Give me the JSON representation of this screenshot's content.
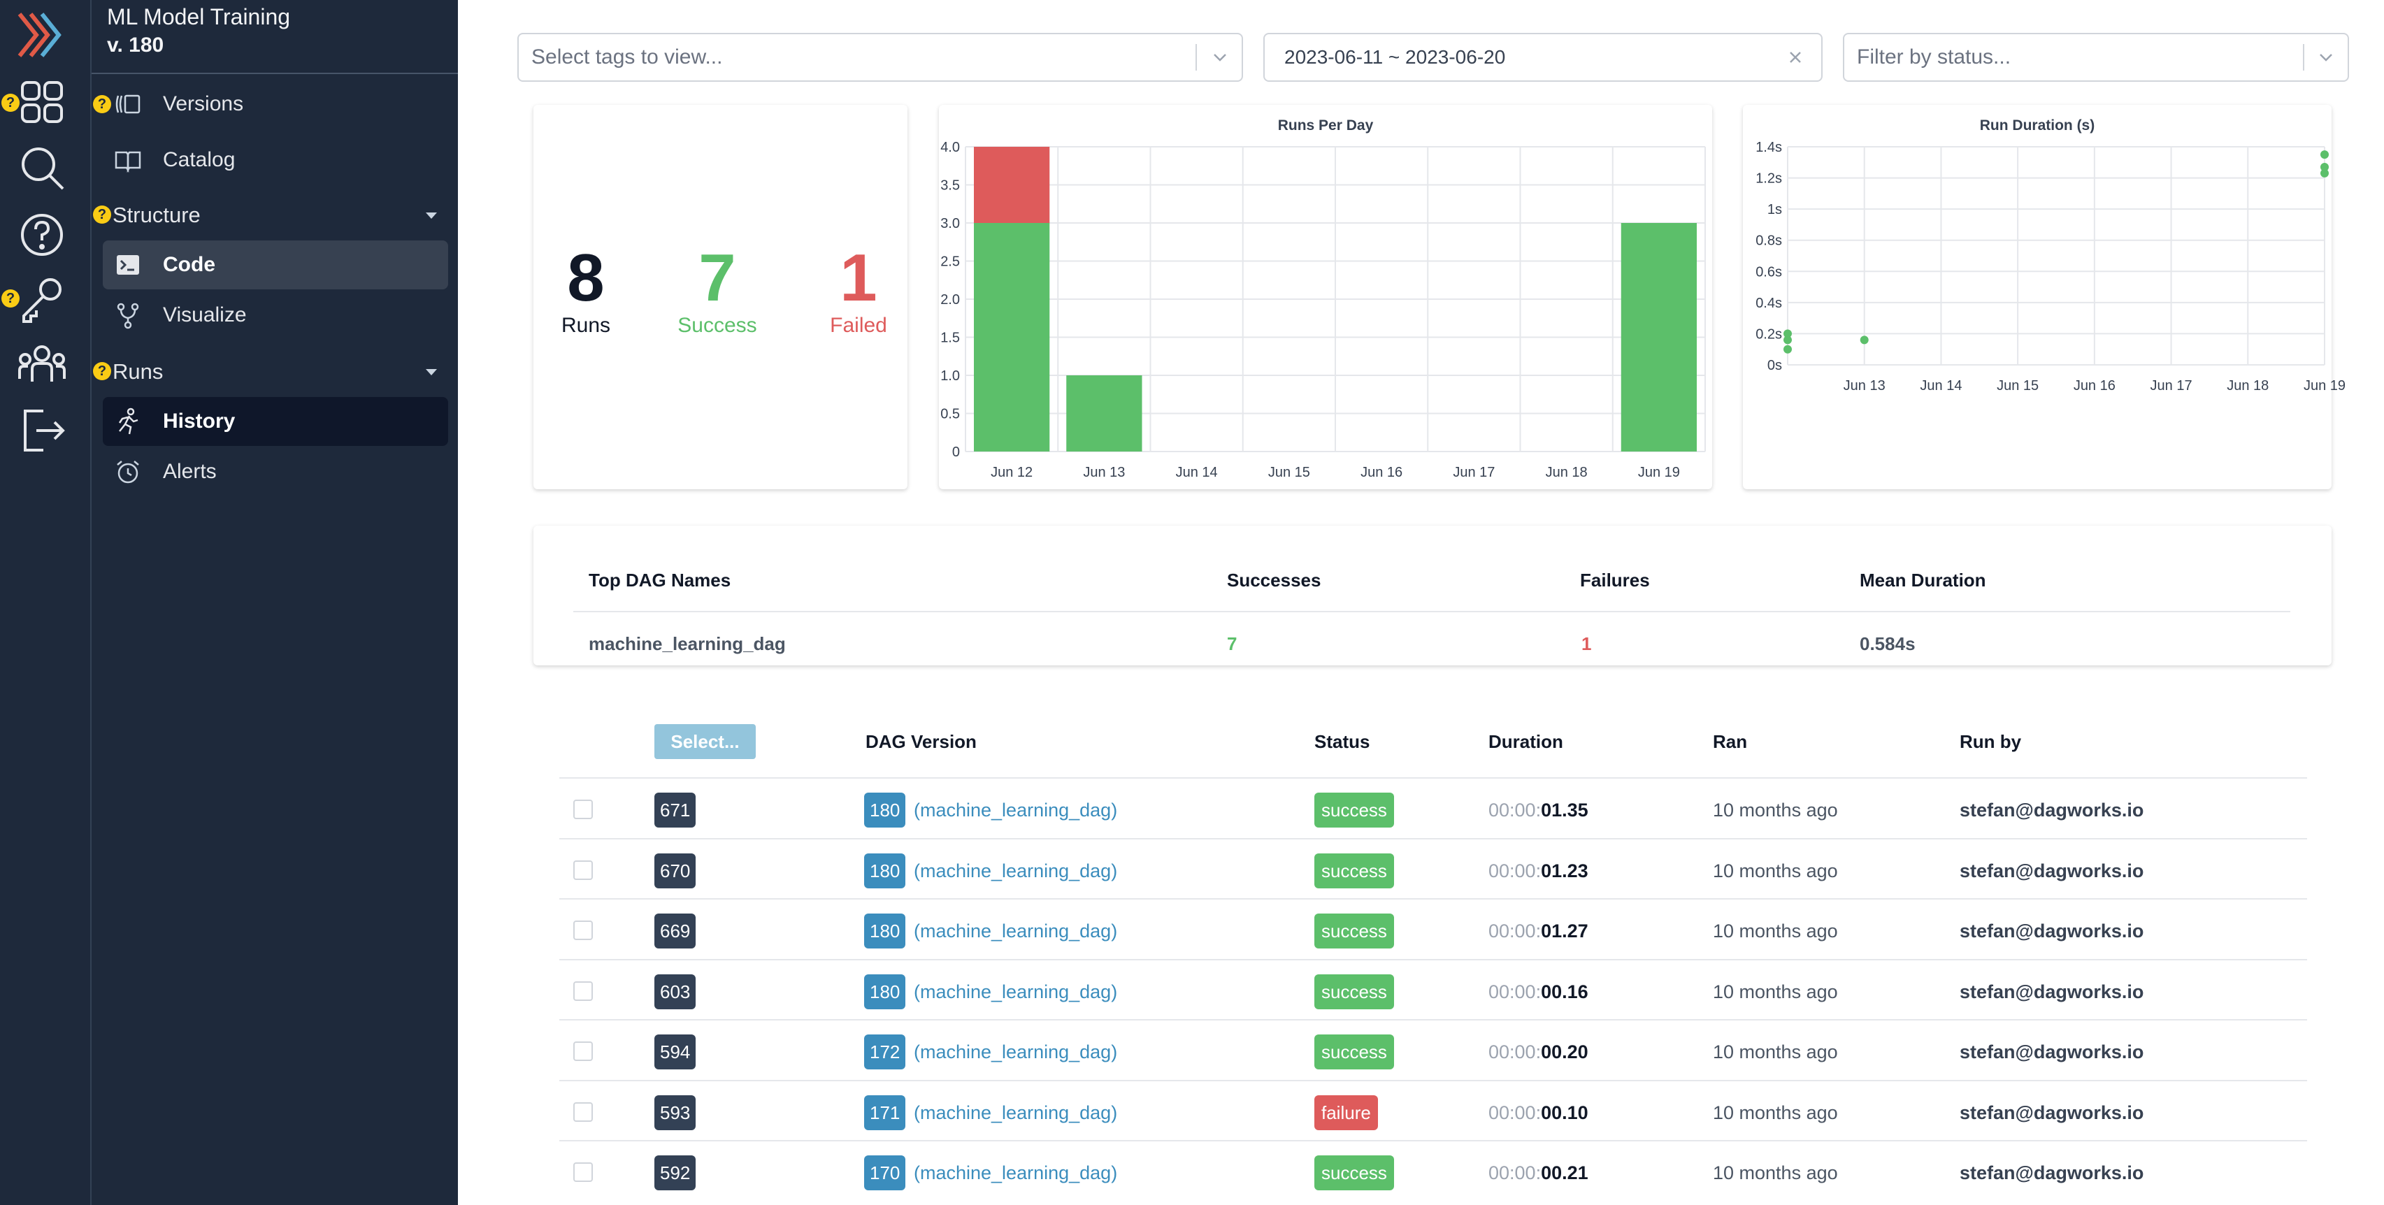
{
  "project": {
    "name": "ML Model Training",
    "version": "v. 180"
  },
  "rail": {
    "icons": [
      "dagworks-logo-icon",
      "dashboard-grid-icon",
      "search-icon",
      "help-icon",
      "key-icon",
      "team-icon",
      "logout-icon"
    ],
    "help_badge": "?"
  },
  "nav": {
    "versions": "Versions",
    "catalog": "Catalog",
    "structure": "Structure",
    "code": "Code",
    "visualize": "Visualize",
    "runs": "Runs",
    "history": "History",
    "alerts": "Alerts"
  },
  "filters": {
    "tags_placeholder": "Select tags to view...",
    "date_range": "2023-06-11 ~ 2023-06-20",
    "status_placeholder": "Filter by status..."
  },
  "summary": {
    "runs_count": "8",
    "runs_label": "Runs",
    "success_count": "7",
    "success_label": "Success",
    "failed_count": "1",
    "failed_label": "Failed"
  },
  "colors": {
    "success": "#5cbf6a",
    "failure": "#de5b5b",
    "accent": "#3b8dbd",
    "sidebar": "#1e293b"
  },
  "chart_data": [
    {
      "type": "bar",
      "title": "Runs Per Day",
      "categories": [
        "Jun 12",
        "Jun 13",
        "Jun 14",
        "Jun 15",
        "Jun 16",
        "Jun 17",
        "Jun 18",
        "Jun 19"
      ],
      "series": [
        {
          "values": [
            3,
            1,
            0,
            0,
            0,
            0,
            0,
            3
          ],
          "color": "#5cbf6a"
        },
        {
          "values": [
            1,
            0,
            0,
            0,
            0,
            0,
            0,
            0
          ],
          "color": "#de5b5b"
        }
      ],
      "stacked": true,
      "ylim": [
        0,
        4
      ],
      "yticks": [
        "0",
        "0.5",
        "1.0",
        "1.5",
        "2.0",
        "2.5",
        "3.0",
        "3.5",
        "4.0"
      ],
      "grid": true
    },
    {
      "type": "scatter",
      "title": "Run Duration (s)",
      "xticks": [
        "Jun 13",
        "Jun 14",
        "Jun 15",
        "Jun 16",
        "Jun 17",
        "Jun 18",
        "Jun 19"
      ],
      "x_range": [
        "2023-06-12",
        "2023-06-19"
      ],
      "points": [
        {
          "x": "2023-06-12",
          "y": 0.2
        },
        {
          "x": "2023-06-12",
          "y": 0.1
        },
        {
          "x": "2023-06-12",
          "y": 0.16
        },
        {
          "x": "2023-06-13",
          "y": 0.16
        },
        {
          "x": "2023-06-19",
          "y": 1.35
        },
        {
          "x": "2023-06-19",
          "y": 1.23
        },
        {
          "x": "2023-06-19",
          "y": 1.27
        }
      ],
      "point_color": "#5cbf6a",
      "ylim": [
        0,
        1.4
      ],
      "yticks": [
        "0s",
        "0.2s",
        "0.4s",
        "0.6s",
        "0.8s",
        "1s",
        "1.2s",
        "1.4s"
      ],
      "grid": true
    }
  ],
  "dag_table": {
    "headers": [
      "Top DAG Names",
      "Successes",
      "Failures",
      "Mean Duration"
    ],
    "rows": [
      {
        "name": "machine_learning_dag",
        "successes": "7",
        "failures": "1",
        "mean": "0.584s"
      }
    ]
  },
  "runs_table": {
    "select_button": "Select...",
    "headers": {
      "version": "DAG Version",
      "status": "Status",
      "duration": "Duration",
      "ran": "Ran",
      "run_by": "Run by"
    },
    "rows": [
      {
        "id": "671",
        "version": "180",
        "dag": "(machine_learning_dag)",
        "status": "success",
        "dur_prefix": "00:00:",
        "dur": "01.35",
        "ran": "10 months ago",
        "by": "stefan@dagworks.io"
      },
      {
        "id": "670",
        "version": "180",
        "dag": "(machine_learning_dag)",
        "status": "success",
        "dur_prefix": "00:00:",
        "dur": "01.23",
        "ran": "10 months ago",
        "by": "stefan@dagworks.io"
      },
      {
        "id": "669",
        "version": "180",
        "dag": "(machine_learning_dag)",
        "status": "success",
        "dur_prefix": "00:00:",
        "dur": "01.27",
        "ran": "10 months ago",
        "by": "stefan@dagworks.io"
      },
      {
        "id": "603",
        "version": "180",
        "dag": "(machine_learning_dag)",
        "status": "success",
        "dur_prefix": "00:00:",
        "dur": "00.16",
        "ran": "10 months ago",
        "by": "stefan@dagworks.io"
      },
      {
        "id": "594",
        "version": "172",
        "dag": "(machine_learning_dag)",
        "status": "success",
        "dur_prefix": "00:00:",
        "dur": "00.20",
        "ran": "10 months ago",
        "by": "stefan@dagworks.io"
      },
      {
        "id": "593",
        "version": "171",
        "dag": "(machine_learning_dag)",
        "status": "failure",
        "dur_prefix": "00:00:",
        "dur": "00.10",
        "ran": "10 months ago",
        "by": "stefan@dagworks.io"
      },
      {
        "id": "592",
        "version": "170",
        "dag": "(machine_learning_dag)",
        "status": "success",
        "dur_prefix": "00:00:",
        "dur": "00.21",
        "ran": "10 months ago",
        "by": "stefan@dagworks.io"
      }
    ]
  }
}
